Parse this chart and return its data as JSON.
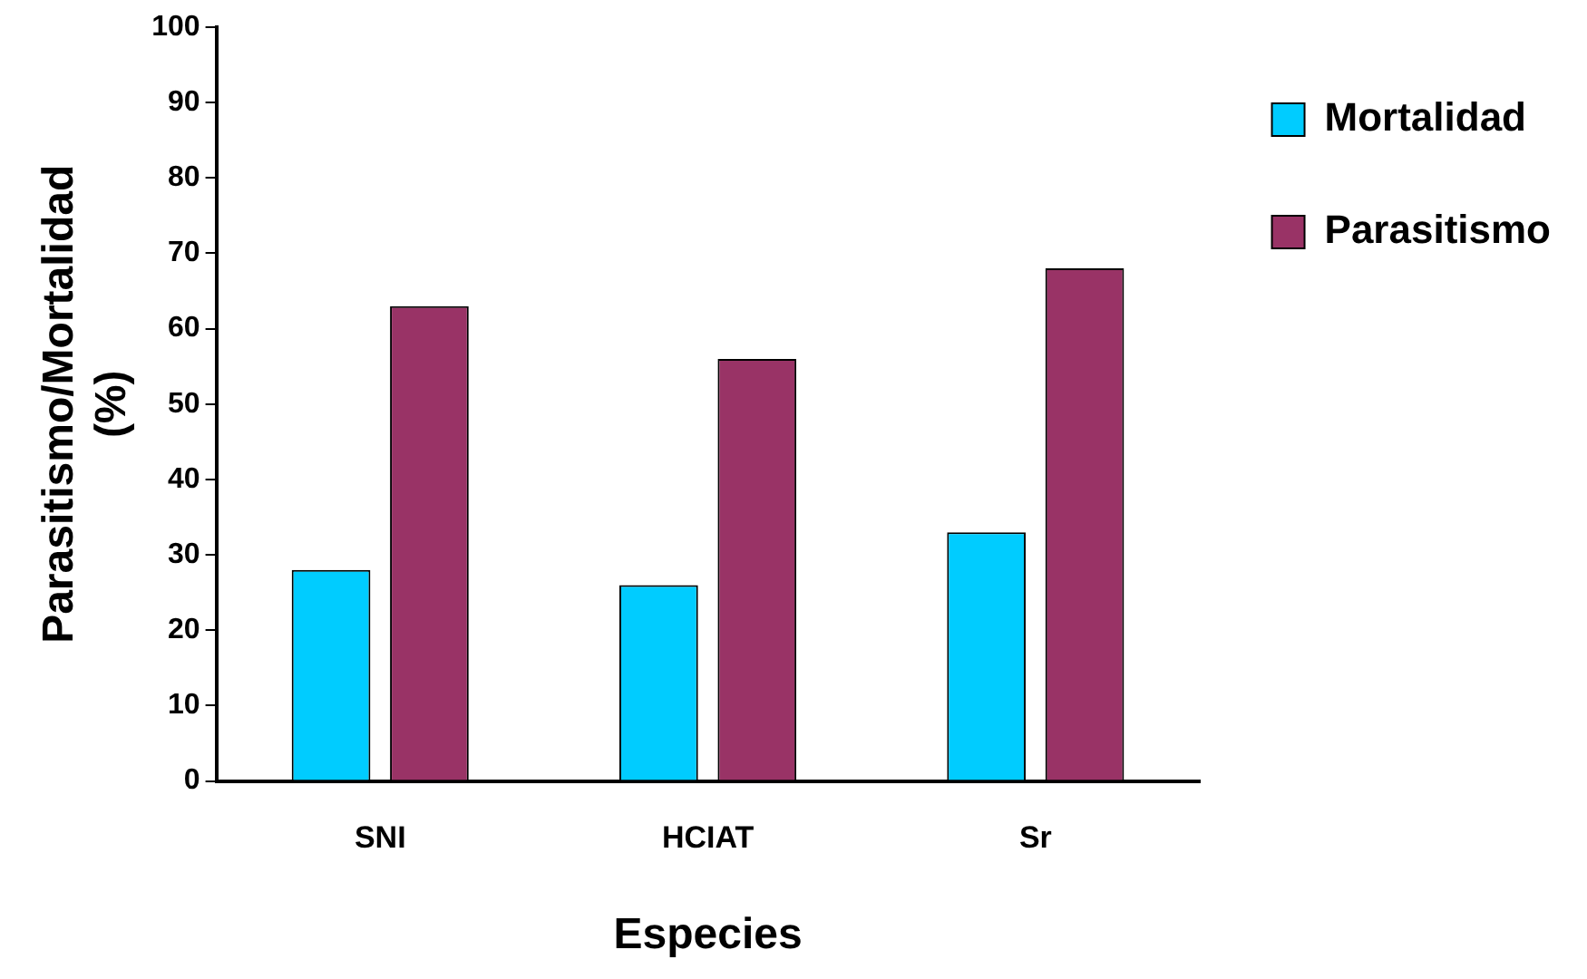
{
  "chart_data": {
    "type": "bar",
    "categories": [
      "SNI",
      "HCIAT",
      "Sr"
    ],
    "series": [
      {
        "name": "Mortalidad",
        "color": "#00ccff",
        "values": [
          28,
          26,
          33
        ]
      },
      {
        "name": "Parasitismo",
        "color": "#993366",
        "values": [
          63,
          56,
          68
        ]
      }
    ],
    "xlabel": "Especies",
    "ylabel": "Parasitismo/Mortalidad (%)",
    "ylim": [
      0,
      100
    ],
    "yticks": [
      0,
      10,
      20,
      30,
      40,
      50,
      60,
      70,
      80,
      90,
      100
    ],
    "grid": false,
    "legend": "top right"
  }
}
